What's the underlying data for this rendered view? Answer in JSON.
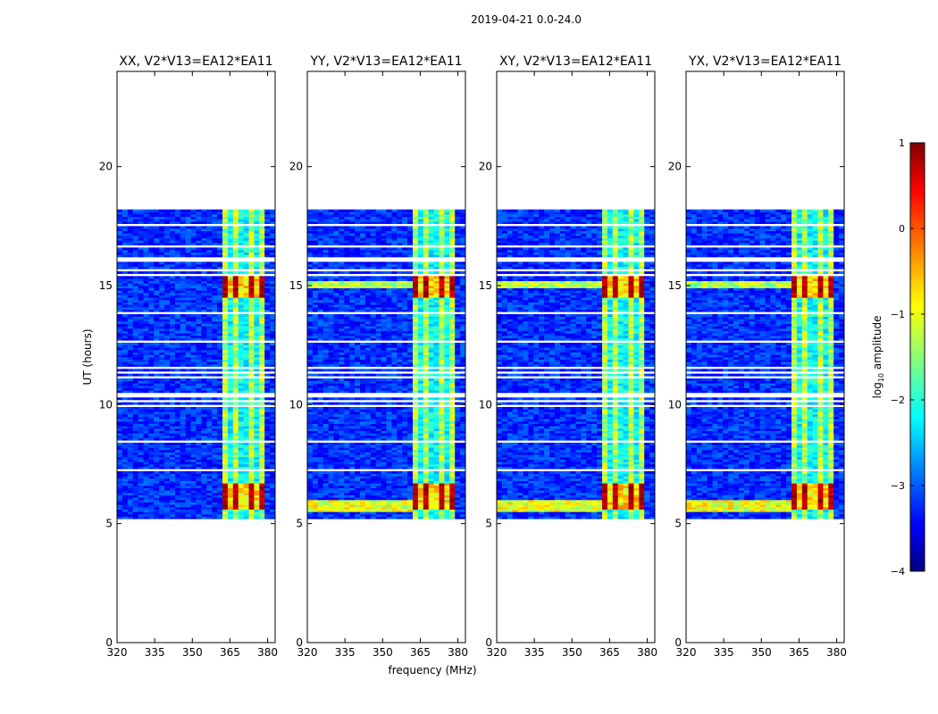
{
  "figure": {
    "suptitle": "2019-04-21 0.0-24.0",
    "ylabel": "UT (hours)",
    "xlabel": "frequency (MHz)"
  },
  "colorbar": {
    "label": "log10 amplitude",
    "label_base": "log",
    "label_sub": "10",
    "label_rest": " amplitude",
    "range": [
      -4,
      1
    ],
    "ticks": [
      "1",
      "0",
      "−1",
      "−2",
      "−3",
      "−4"
    ],
    "tick_values": [
      1,
      0,
      -1,
      -2,
      -3,
      -4
    ],
    "colormap": "jet",
    "colors": [
      "#00007f",
      "#0000ff",
      "#00ffff",
      "#ffff00",
      "#ff0000",
      "#7f0000"
    ]
  },
  "chart_data": {
    "type": "heatmap",
    "xlim": [
      320,
      383
    ],
    "ylim": [
      0,
      24
    ],
    "x_ticks": [
      320,
      335,
      350,
      365,
      380
    ],
    "x_tick_labels": [
      "320",
      "335",
      "350",
      "365",
      "380"
    ],
    "y_ticks": [
      0,
      5,
      10,
      15,
      20
    ],
    "y_tick_labels": [
      "0",
      "5",
      "10",
      "15",
      "20"
    ],
    "data_time_range": [
      5.2,
      18.1
    ],
    "data_gaps_hours": [
      10.35,
      16.05
    ],
    "rfi_band_mhz": [
      361,
      378
    ],
    "rfi_channel_centers_mhz": [
      363,
      368,
      373,
      378
    ],
    "high_activity_hours": [
      [
        5.5,
        6.6
      ],
      [
        14.4,
        15.4
      ]
    ],
    "panels": [
      {
        "title": "XX, V2*V13=EA12*EA11"
      },
      {
        "title": "YY, V2*V13=EA12*EA11"
      },
      {
        "title": "XY, V2*V13=EA12*EA11"
      },
      {
        "title": "YX, V2*V13=EA12*EA11"
      }
    ]
  }
}
